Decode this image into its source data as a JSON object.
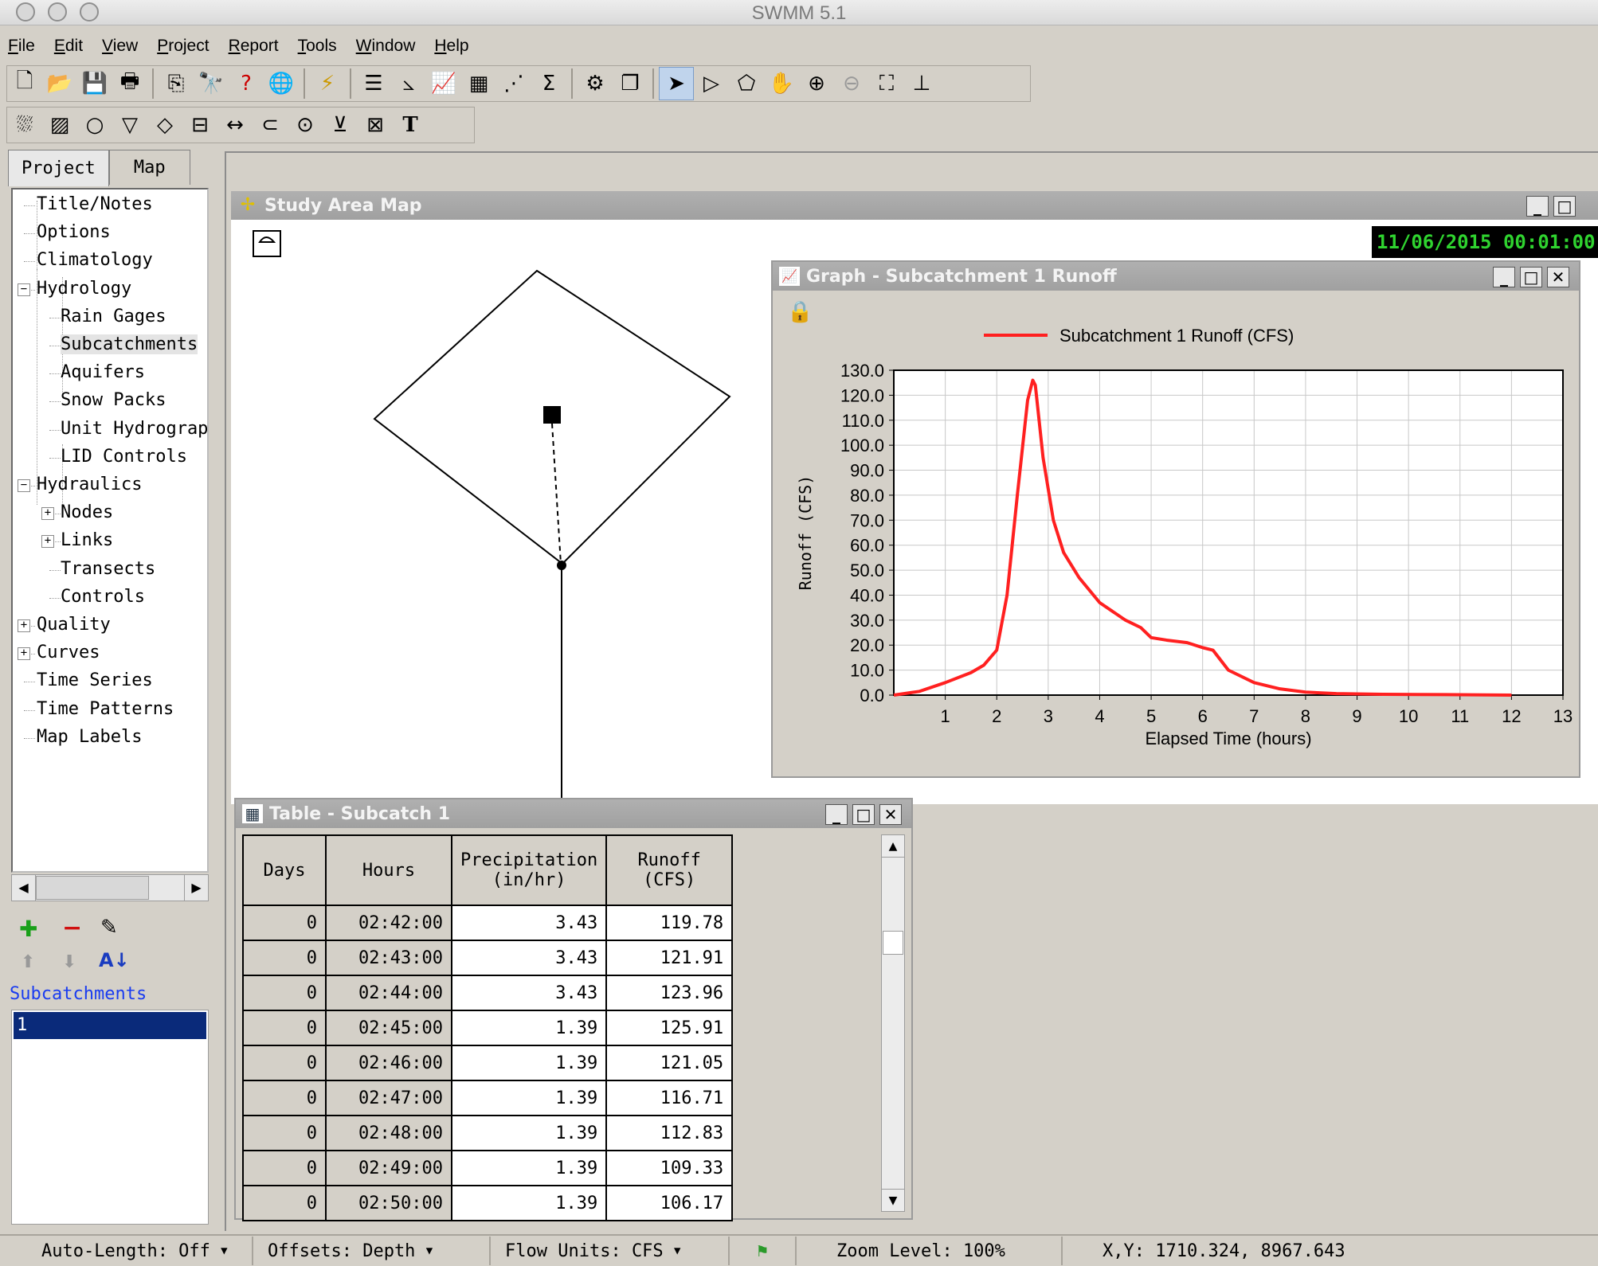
{
  "window": {
    "title": "SWMM 5.1"
  },
  "menu": [
    {
      "label": "File",
      "u": "F",
      "rest": "ile"
    },
    {
      "label": "Edit",
      "u": "E",
      "rest": "dit"
    },
    {
      "label": "View",
      "u": "V",
      "rest": "iew"
    },
    {
      "label": "Project",
      "u": "P",
      "rest": "roject"
    },
    {
      "label": "Report",
      "u": "R",
      "rest": "eport"
    },
    {
      "label": "Tools",
      "u": "T",
      "rest": "ools"
    },
    {
      "label": "Window",
      "u": "W",
      "rest": "indow"
    },
    {
      "label": "Help",
      "u": "H",
      "rest": "elp"
    }
  ],
  "left_panel": {
    "tabs": [
      "Project",
      "Map"
    ],
    "tree": [
      {
        "label": "Title/Notes"
      },
      {
        "label": "Options"
      },
      {
        "label": "Climatology"
      },
      {
        "label": "Hydrology",
        "expander": "−"
      },
      {
        "label": "Rain Gages"
      },
      {
        "label": "Subcatchments"
      },
      {
        "label": "Aquifers"
      },
      {
        "label": "Snow Packs"
      },
      {
        "label": "Unit Hydrographs"
      },
      {
        "label": "LID Controls"
      },
      {
        "label": "Hydraulics",
        "expander": "−"
      },
      {
        "label": "Nodes",
        "expander": "+"
      },
      {
        "label": "Links",
        "expander": "+"
      },
      {
        "label": "Transects"
      },
      {
        "label": "Controls"
      },
      {
        "label": "Quality",
        "expander": "+"
      },
      {
        "label": "Curves",
        "expander": "+"
      },
      {
        "label": "Time Series"
      },
      {
        "label": "Time Patterns"
      },
      {
        "label": "Map Labels"
      }
    ],
    "category_label": "Subcatchments",
    "items": [
      "1"
    ]
  },
  "map": {
    "title": "Study Area Map",
    "clock": "11/06/2015 00:01:00"
  },
  "graph": {
    "title": "Graph - Subcatchment 1 Runoff",
    "legend": "Subcatchment 1 Runoff (CFS)",
    "series_color": "#ff2020"
  },
  "chart_data": {
    "type": "line",
    "xlabel": "Elapsed Time (hours)",
    "ylabel": "Runoff (CFS)",
    "xlim": [
      0,
      13
    ],
    "ylim": [
      0,
      130
    ],
    "xticks": [
      "1",
      "2",
      "3",
      "4",
      "5",
      "6",
      "7",
      "8",
      "9",
      "10",
      "11",
      "12",
      "13"
    ],
    "yticks": [
      "0.0",
      "10.0",
      "20.0",
      "30.0",
      "40.0",
      "50.0",
      "60.0",
      "70.0",
      "80.0",
      "90.0",
      "100.0",
      "110.0",
      "120.0",
      "130.0"
    ],
    "grid": true,
    "legend_position": "top",
    "series": [
      {
        "name": "Subcatchment 1 Runoff (CFS)",
        "x": [
          0,
          0.5,
          1.0,
          1.5,
          1.75,
          2.0,
          2.2,
          2.4,
          2.6,
          2.7,
          2.75,
          2.9,
          3.1,
          3.3,
          3.6,
          4.0,
          4.5,
          4.8,
          5.0,
          5.3,
          5.7,
          6.0,
          6.2,
          6.5,
          7.0,
          7.5,
          8.0,
          8.6,
          9.5,
          10.7,
          12.0
        ],
        "y": [
          0,
          1.5,
          5,
          9,
          12,
          18,
          40,
          80,
          118,
          126,
          124,
          95,
          70,
          57,
          47,
          37,
          30,
          27,
          23,
          22,
          21,
          19,
          18,
          10,
          5,
          2.5,
          1.2,
          0.6,
          0.3,
          0.2,
          0
        ]
      }
    ]
  },
  "table": {
    "title": "Table - Subcatch 1",
    "headers": [
      [
        "Days"
      ],
      [
        "Hours"
      ],
      [
        "Precipitation",
        "(in/hr)"
      ],
      [
        "Runoff",
        "(CFS)"
      ]
    ],
    "rows": [
      [
        "0",
        "02:42:00",
        "3.43",
        "119.78"
      ],
      [
        "0",
        "02:43:00",
        "3.43",
        "121.91"
      ],
      [
        "0",
        "02:44:00",
        "3.43",
        "123.96"
      ],
      [
        "0",
        "02:45:00",
        "1.39",
        "125.91"
      ],
      [
        "0",
        "02:46:00",
        "1.39",
        "121.05"
      ],
      [
        "0",
        "02:47:00",
        "1.39",
        "116.71"
      ],
      [
        "0",
        "02:48:00",
        "1.39",
        "112.83"
      ],
      [
        "0",
        "02:49:00",
        "1.39",
        "109.33"
      ],
      [
        "0",
        "02:50:00",
        "1.39",
        "106.17"
      ]
    ]
  },
  "status": {
    "auto_length": "Auto-Length: Off",
    "offsets": "Offsets: Depth",
    "flow_units": "Flow Units: CFS",
    "zoom": "Zoom Level: 100%",
    "xy": "X,Y: 1710.324, 8967.643"
  }
}
